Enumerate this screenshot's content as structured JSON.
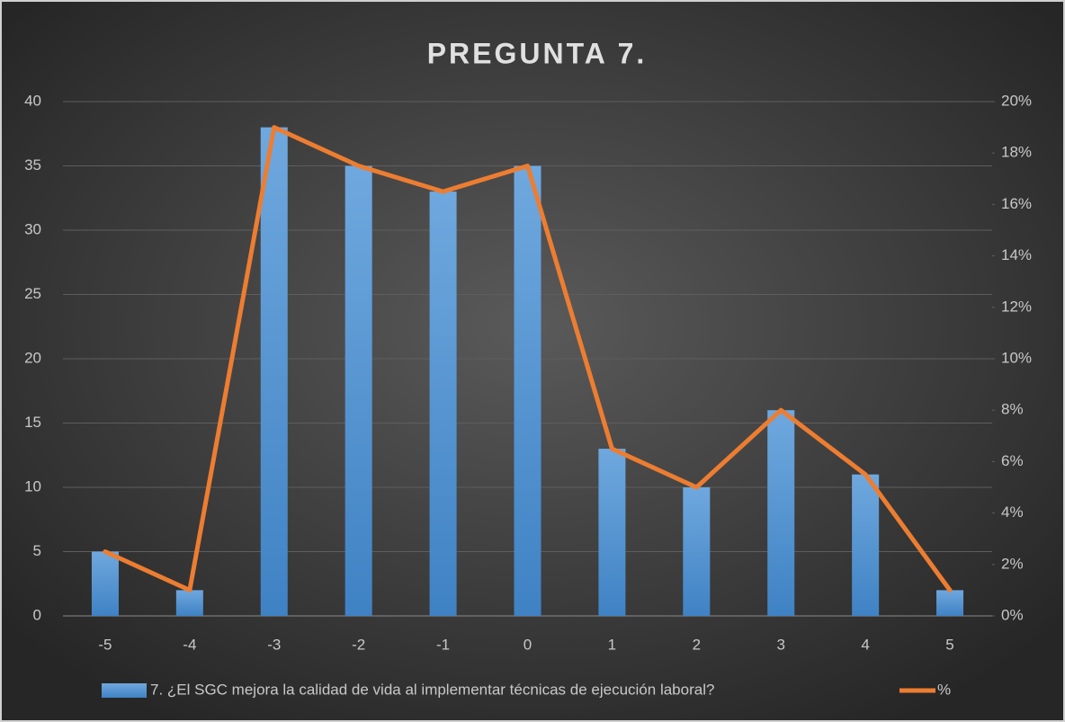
{
  "chart_data": {
    "type": "bar",
    "title": "PREGUNTA 7.",
    "categories": [
      "-5",
      "-4",
      "-3",
      "-2",
      "-1",
      "0",
      "1",
      "2",
      "3",
      "4",
      "5"
    ],
    "series": [
      {
        "name": "7. ¿El SGC mejora la calidad de vida al implementar técnicas de ejecución laboral?",
        "type": "bar",
        "color": "#5b9bd5",
        "values": [
          5,
          2,
          38,
          35,
          33,
          35,
          13,
          10,
          16,
          11,
          2
        ]
      },
      {
        "name": "%",
        "type": "line",
        "axis": "y2",
        "color": "#ed7d31",
        "values": [
          2.5,
          1,
          19,
          17.5,
          16.5,
          17.5,
          6.5,
          5,
          8,
          5.5,
          1
        ]
      }
    ],
    "ylim": [
      0,
      40
    ],
    "yticks": [
      0,
      5,
      10,
      15,
      20,
      25,
      30,
      35,
      40
    ],
    "y2lim": [
      0,
      20
    ],
    "y2ticks": [
      {
        "value": 0,
        "label": "0%"
      },
      {
        "value": 2,
        "label": "2%"
      },
      {
        "value": 4,
        "label": "4%"
      },
      {
        "value": 6,
        "label": "6%"
      },
      {
        "value": 8,
        "label": "8%"
      },
      {
        "value": 10,
        "label": "10%"
      },
      {
        "value": 12,
        "label": "12%"
      },
      {
        "value": 14,
        "label": "14%"
      },
      {
        "value": 16,
        "label": "16%"
      },
      {
        "value": 18,
        "label": "18%"
      },
      {
        "value": 20,
        "label": "20%"
      }
    ],
    "grid": true,
    "legend": "bottom"
  }
}
